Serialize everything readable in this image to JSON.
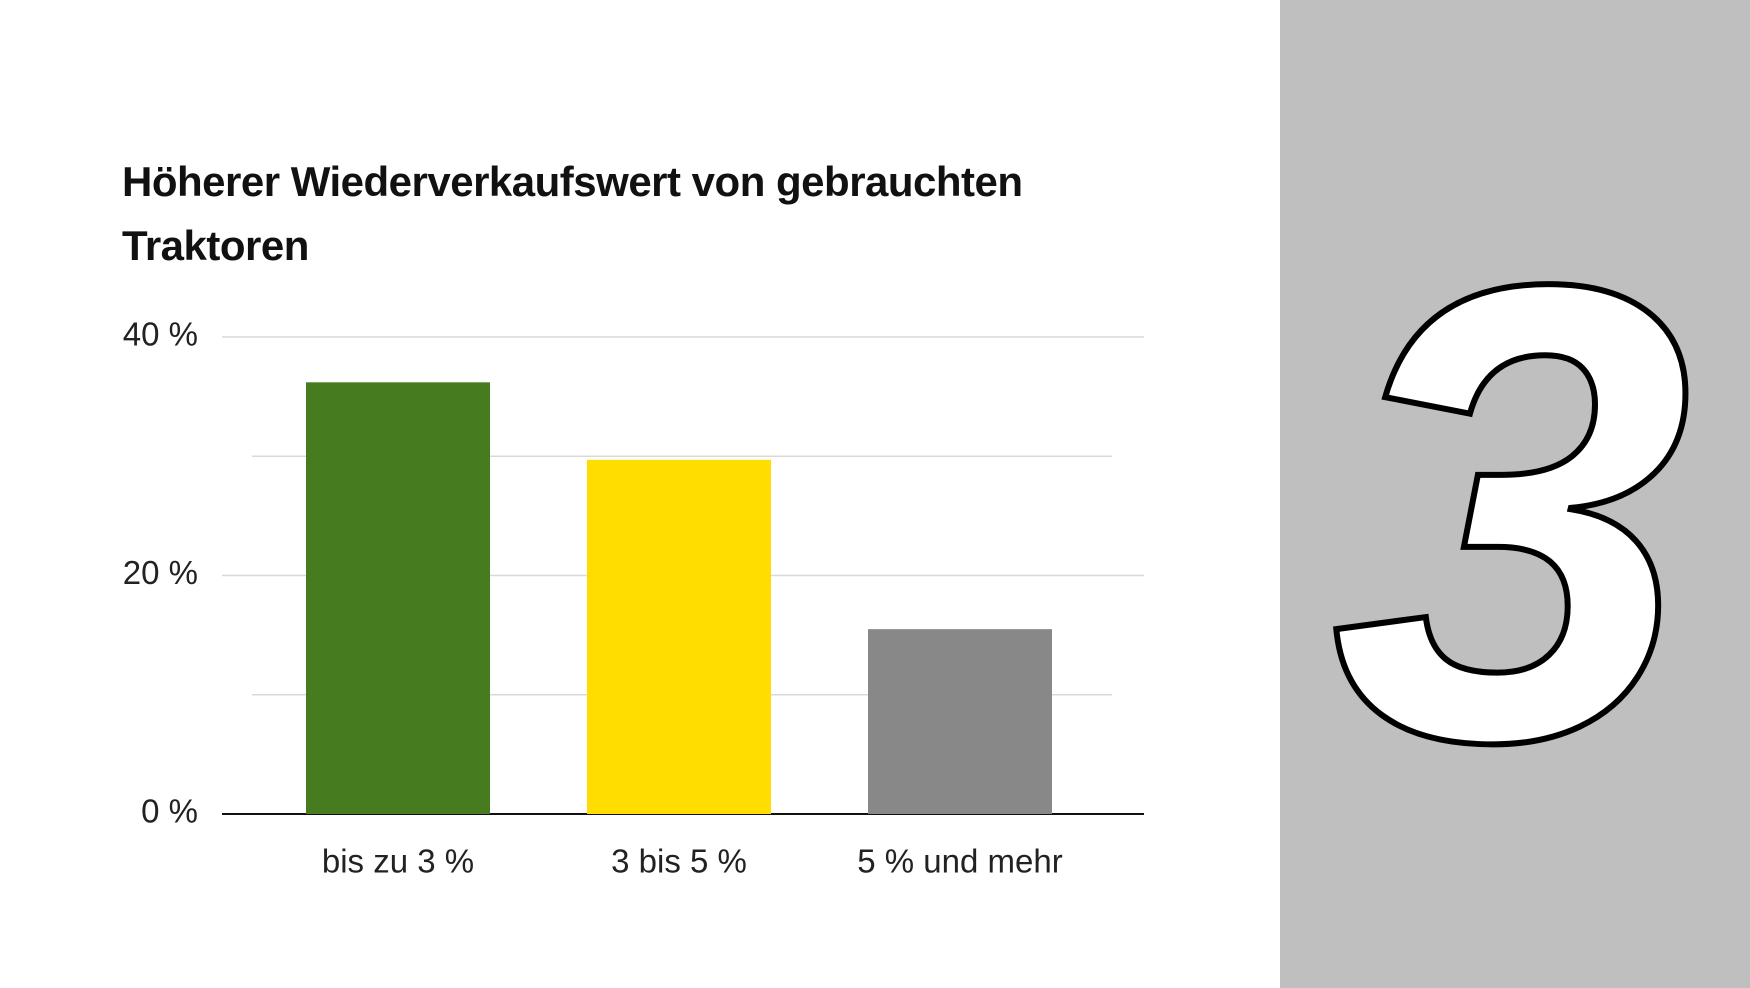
{
  "chart_data": {
    "type": "bar",
    "title": "Höherer Wiederverkaufswert von gebrauchten Traktoren",
    "categories": [
      "bis zu 3 %",
      "3 bis 5 %",
      "5 % und mehr"
    ],
    "values": [
      36.2,
      29.7,
      15.5
    ],
    "colors": [
      "#477b1f",
      "#ffdd00",
      "#888888"
    ],
    "ylim": [
      0,
      40
    ],
    "yticks": [
      {
        "value": 0,
        "label": "0 %"
      },
      {
        "value": 20,
        "label": "20 %"
      },
      {
        "value": 40,
        "label": "40 %"
      }
    ],
    "minor_grid": [
      10,
      30
    ],
    "grid": true
  },
  "badge": "3"
}
